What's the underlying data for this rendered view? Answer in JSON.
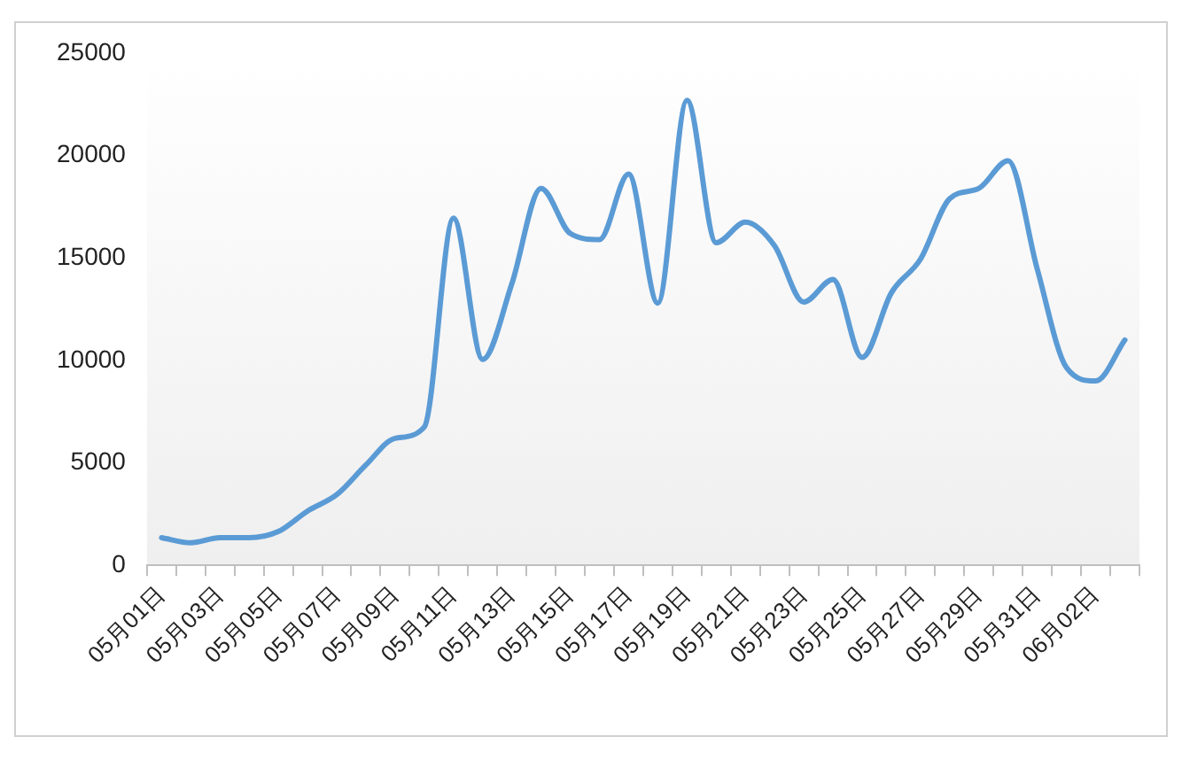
{
  "chart_data": {
    "type": "line",
    "categories": [
      "05月01日",
      null,
      "05月03日",
      null,
      "05月05日",
      null,
      "05月07日",
      null,
      "05月09日",
      null,
      "05月11日",
      null,
      "05月13日",
      null,
      "05月15日",
      null,
      "05月17日",
      null,
      "05月19日",
      null,
      "05月21日",
      null,
      "05月23日",
      null,
      "05月25日",
      null,
      "05月27日",
      null,
      "05月29日",
      null,
      "05月31日",
      null,
      "06月02日",
      null
    ],
    "series": [
      {
        "color": "#5b9bd5",
        "values": [
          1350,
          1100,
          1350,
          1350,
          1650,
          2650,
          3450,
          4900,
          6200,
          6750,
          16950,
          10050,
          13750,
          18400,
          16200,
          15900,
          19100,
          12800,
          22700,
          15750,
          16750,
          15600,
          12850,
          13950,
          10150,
          13300,
          14950,
          17900,
          18400,
          19750,
          14450,
          9650,
          9000,
          11000
        ]
      }
    ],
    "ylim": [
      0,
      25000
    ],
    "yticks": [
      0,
      5000,
      10000,
      15000,
      20000,
      25000
    ],
    "grid": false,
    "legend": false,
    "marker": "none",
    "line_style": "solid"
  }
}
